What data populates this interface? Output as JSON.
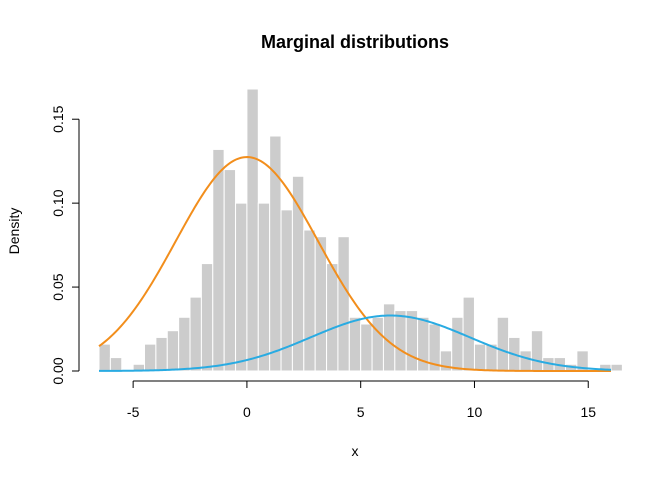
{
  "chart_data": {
    "type": "bar",
    "title": "Marginal distributions",
    "xlabel": "x",
    "ylabel": "Density",
    "xlim": [
      -6.5,
      16.0
    ],
    "ylim": [
      0,
      0.168
    ],
    "x_ticks": [
      -5,
      0,
      5,
      10,
      15
    ],
    "x_tick_labels": [
      "-5",
      "0",
      "5",
      "10",
      "15"
    ],
    "y_ticks": [
      0,
      0.05,
      0.1,
      0.15
    ],
    "y_tick_labels": [
      "0.00",
      "0.05",
      "0.10",
      "0.15"
    ],
    "grid": false,
    "histogram": {
      "bin_width": 0.5,
      "bin_edges_start": -6.5,
      "values": [
        0.016,
        0.008,
        0.0,
        0.004,
        0.016,
        0.02,
        0.024,
        0.032,
        0.044,
        0.064,
        0.132,
        0.12,
        0.1,
        0.168,
        0.1,
        0.14,
        0.096,
        0.116,
        0.084,
        0.08,
        0.064,
        0.08,
        0.032,
        0.028,
        0.032,
        0.04,
        0.036,
        0.036,
        0.032,
        0.028,
        0.012,
        0.032,
        0.044,
        0.016,
        0.016,
        0.032,
        0.02,
        0.012,
        0.024,
        0.008,
        0.008,
        0.004,
        0.012,
        0.0,
        0.004,
        0.004
      ],
      "color": "#cccccc"
    },
    "series": [
      {
        "type": "normal_density",
        "mean": 0.0,
        "sd": 3.13,
        "weight": 1.0,
        "color": "#f28e1c"
      },
      {
        "type": "normal_density",
        "mean": 6.3,
        "sd": 3.5,
        "weight": 0.29,
        "color": "#29abe2"
      }
    ]
  }
}
